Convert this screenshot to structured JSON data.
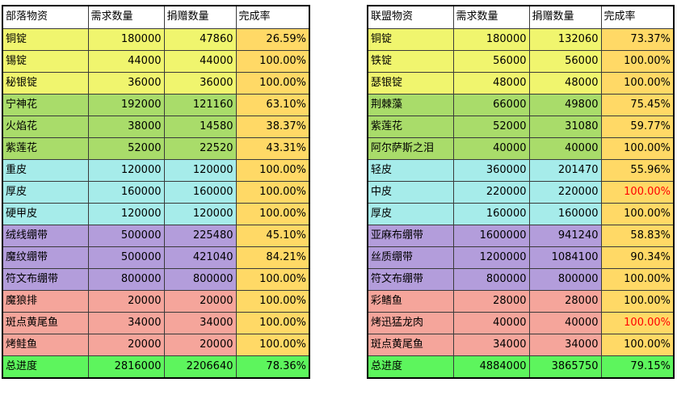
{
  "tribe": {
    "headers": [
      "部落物资",
      "需求数量",
      "捐赠数量",
      "完成率"
    ],
    "rows": [
      {
        "group": "ore",
        "name": "铜锭",
        "need": "180000",
        "donated": "47860",
        "rate": "26.59%"
      },
      {
        "group": "ore",
        "name": "锡锭",
        "need": "44000",
        "donated": "44000",
        "rate": "100.00%"
      },
      {
        "group": "ore",
        "name": "秘银锭",
        "need": "36000",
        "donated": "36000",
        "rate": "100.00%"
      },
      {
        "group": "herb",
        "name": "宁神花",
        "need": "192000",
        "donated": "121160",
        "rate": "63.10%"
      },
      {
        "group": "herb",
        "name": "火焰花",
        "need": "38000",
        "donated": "14580",
        "rate": "38.37%"
      },
      {
        "group": "herb",
        "name": "紫莲花",
        "need": "52000",
        "donated": "22520",
        "rate": "43.31%"
      },
      {
        "group": "leather",
        "name": "重皮",
        "need": "120000",
        "donated": "120000",
        "rate": "100.00%"
      },
      {
        "group": "leather",
        "name": "厚皮",
        "need": "160000",
        "donated": "160000",
        "rate": "100.00%"
      },
      {
        "group": "leather",
        "name": "硬甲皮",
        "need": "120000",
        "donated": "120000",
        "rate": "100.00%"
      },
      {
        "group": "cloth",
        "name": "绒线绷带",
        "need": "500000",
        "donated": "225480",
        "rate": "45.10%"
      },
      {
        "group": "cloth",
        "name": "魔纹绷带",
        "need": "500000",
        "donated": "421040",
        "rate": "84.21%"
      },
      {
        "group": "cloth",
        "name": "符文布绷带",
        "need": "800000",
        "donated": "800000",
        "rate": "100.00%"
      },
      {
        "group": "food",
        "name": "魔狼排",
        "need": "20000",
        "donated": "20000",
        "rate": "100.00%"
      },
      {
        "group": "food",
        "name": "斑点黄尾鱼",
        "need": "34000",
        "donated": "34000",
        "rate": "100.00%"
      },
      {
        "group": "food",
        "name": "烤鲑鱼",
        "need": "20000",
        "donated": "20000",
        "rate": "100.00%"
      }
    ],
    "total": {
      "name": "总进度",
      "need": "2816000",
      "donated": "2206640",
      "rate": "78.36%"
    }
  },
  "alliance": {
    "headers": [
      "联盟物资",
      "需求数量",
      "捐赠数量",
      "完成率"
    ],
    "rows": [
      {
        "group": "ore",
        "name": "铜锭",
        "need": "180000",
        "donated": "132060",
        "rate": "73.37%"
      },
      {
        "group": "ore",
        "name": "铁锭",
        "need": "56000",
        "donated": "56000",
        "rate": "100.00%"
      },
      {
        "group": "ore",
        "name": "瑟银锭",
        "need": "48000",
        "donated": "48000",
        "rate": "100.00%"
      },
      {
        "group": "herb",
        "name": "荆棘藻",
        "need": "66000",
        "donated": "49800",
        "rate": "75.45%"
      },
      {
        "group": "herb",
        "name": "紫莲花",
        "need": "52000",
        "donated": "31080",
        "rate": "59.77%"
      },
      {
        "group": "herb",
        "name": "阿尔萨斯之泪",
        "need": "40000",
        "donated": "40000",
        "rate": "100.00%"
      },
      {
        "group": "leather",
        "name": "轻皮",
        "need": "360000",
        "donated": "201470",
        "rate": "55.96%"
      },
      {
        "group": "leather",
        "name": "中皮",
        "need": "220000",
        "donated": "220000",
        "rate": "100.00%"
      },
      {
        "group": "leather",
        "name": "厚皮",
        "need": "160000",
        "donated": "160000",
        "rate": "100.00%"
      },
      {
        "group": "cloth",
        "name": "亚麻布绷带",
        "need": "1600000",
        "donated": "941240",
        "rate": "58.83%"
      },
      {
        "group": "cloth",
        "name": "丝质绷带",
        "need": "1200000",
        "donated": "1084100",
        "rate": "90.34%"
      },
      {
        "group": "cloth",
        "name": "符文布绷带",
        "need": "800000",
        "donated": "800000",
        "rate": "100.00%"
      },
      {
        "group": "food",
        "name": "彩鳍鱼",
        "need": "28000",
        "donated": "28000",
        "rate": "100.00%"
      },
      {
        "group": "food",
        "name": "烤迅猛龙肉",
        "need": "40000",
        "donated": "40000",
        "rate": "100.00%"
      },
      {
        "group": "food",
        "name": "斑点黄尾鱼",
        "need": "34000",
        "donated": "34000",
        "rate": "100.00%"
      }
    ],
    "total": {
      "name": "总进度",
      "need": "4884000",
      "donated": "3865750",
      "rate": "79.15%"
    }
  }
}
